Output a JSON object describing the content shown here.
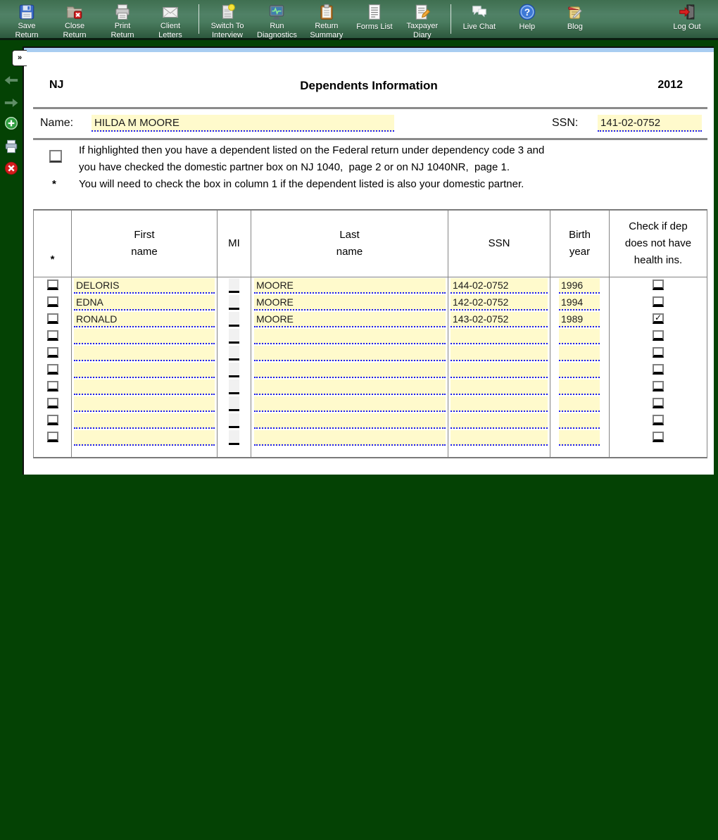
{
  "toolbar": {
    "groups": [
      {
        "buttons": [
          {
            "id": "save-return",
            "icon": "save-icon",
            "label": "Save\nReturn"
          },
          {
            "id": "close-return",
            "icon": "close-folder-icon",
            "label": "Close\nReturn"
          },
          {
            "id": "print-return",
            "icon": "printer-icon",
            "label": "Print\nReturn"
          },
          {
            "id": "client-letters",
            "icon": "envelope-icon",
            "label": "Client\nLetters"
          }
        ]
      },
      {
        "buttons": [
          {
            "id": "switch-to-interview",
            "icon": "interview-page-icon",
            "label": "Switch To\nInterview"
          },
          {
            "id": "run-diagnostics",
            "icon": "diagnostics-monitor-icon",
            "label": "Run\nDiagnostics"
          },
          {
            "id": "return-summary",
            "icon": "clipboard-icon",
            "label": "Return\nSummary"
          },
          {
            "id": "forms-list",
            "icon": "forms-list-icon",
            "label": "Forms List"
          },
          {
            "id": "taxpayer-diary",
            "icon": "diary-pencil-icon",
            "label": "Taxpayer\nDiary"
          }
        ]
      },
      {
        "buttons": [
          {
            "id": "live-chat",
            "icon": "chat-bubbles-icon",
            "label": "Live Chat"
          },
          {
            "id": "help",
            "icon": "help-icon",
            "label": "Help"
          },
          {
            "id": "blog",
            "icon": "blog-scroll-icon",
            "label": "Blog"
          }
        ]
      }
    ],
    "logout": {
      "id": "log-out",
      "icon": "logout-door-icon",
      "label": "Log Out"
    }
  },
  "sidebar": {
    "expander_glyph": "»",
    "items": [
      {
        "id": "back",
        "icon": "back-arrow-icon"
      },
      {
        "id": "forward",
        "icon": "forward-arrow-icon"
      },
      {
        "id": "add-form",
        "icon": "add-plus-icon"
      },
      {
        "id": "print-page",
        "icon": "small-printer-icon"
      },
      {
        "id": "delete-form",
        "icon": "red-x-icon"
      }
    ]
  },
  "form": {
    "state": "NJ",
    "title": "Dependents Information",
    "year": "2012",
    "name_label": "Name:",
    "name_value": "HILDA M MOORE",
    "ssn_label": "SSN:",
    "ssn_value": "141-02-0752",
    "instructions": {
      "line1": "If highlighted then you have a dependent listed on the Federal return under dependency code 3 and\nyou have checked the domestic partner box on NJ 1040,  page 2 or on NJ 1040NR,  page 1.",
      "star": "*",
      "line2": "You will need to check the box in column 1 if the dependent listed is also your domestic partner."
    },
    "highlight_checkbox_checked": false
  },
  "table": {
    "headers": [
      "*",
      "First\nname",
      "MI",
      "Last\nname",
      "SSN",
      "Birth\nyear",
      "Check if dep\ndoes not have\nhealth ins."
    ],
    "rows": [
      {
        "partner": false,
        "first": "DELORIS",
        "mi": "",
        "last": "MOORE",
        "ssn": "144-02-0752",
        "birth_year": "1996",
        "no_health_ins": false
      },
      {
        "partner": false,
        "first": "EDNA",
        "mi": "",
        "last": "MOORE",
        "ssn": "142-02-0752",
        "birth_year": "1994",
        "no_health_ins": false
      },
      {
        "partner": false,
        "first": "RONALD",
        "mi": "",
        "last": "MOORE",
        "ssn": "143-02-0752",
        "birth_year": "1989",
        "no_health_ins": true
      },
      {
        "partner": false,
        "first": "",
        "mi": "",
        "last": "",
        "ssn": "",
        "birth_year": "",
        "no_health_ins": false
      },
      {
        "partner": false,
        "first": "",
        "mi": "",
        "last": "",
        "ssn": "",
        "birth_year": "",
        "no_health_ins": false
      },
      {
        "partner": false,
        "first": "",
        "mi": "",
        "last": "",
        "ssn": "",
        "birth_year": "",
        "no_health_ins": false
      },
      {
        "partner": false,
        "first": "",
        "mi": "",
        "last": "",
        "ssn": "",
        "birth_year": "",
        "no_health_ins": false
      },
      {
        "partner": false,
        "first": "",
        "mi": "",
        "last": "",
        "ssn": "",
        "birth_year": "",
        "no_health_ins": false
      },
      {
        "partner": false,
        "first": "",
        "mi": "",
        "last": "",
        "ssn": "",
        "birth_year": "",
        "no_health_ins": false
      },
      {
        "partner": false,
        "first": "",
        "mi": "",
        "last": "",
        "ssn": "",
        "birth_year": "",
        "no_health_ins": false
      }
    ],
    "check_glyph": "✓"
  },
  "colors": {
    "page_background": "#044204",
    "toolbar_green": "#4a7c5f",
    "field_yellow": "#FFFACC",
    "field_underline_blue": "#1a1af0",
    "panel_top_strip": "#a9cdf1"
  }
}
